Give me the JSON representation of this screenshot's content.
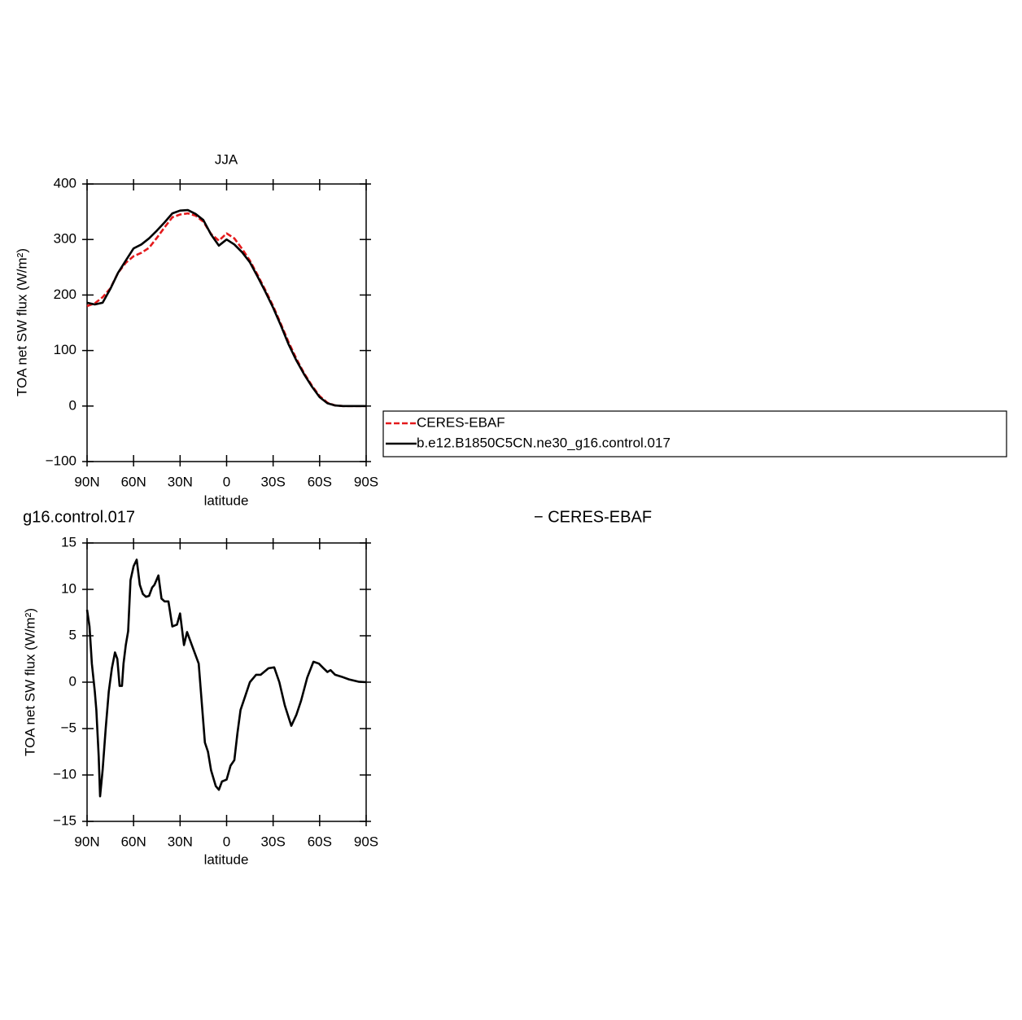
{
  "chart_data": [
    {
      "type": "line",
      "title": "JJA",
      "xlabel": "latitude",
      "ylabel": "TOA net SW flux (W/m²)",
      "x": [
        90,
        85,
        80,
        75,
        70,
        65,
        60,
        55,
        50,
        45,
        40,
        35,
        30,
        25,
        20,
        15,
        10,
        5,
        0,
        -5,
        -10,
        -15,
        -20,
        -25,
        -30,
        -35,
        -40,
        -45,
        -50,
        -55,
        -60,
        -65,
        -70,
        -75,
        -80,
        -85,
        -90
      ],
      "series": [
        {
          "name": "CERES-EBAF",
          "color": "#e41a1c",
          "dash": true,
          "values": [
            180,
            185,
            196,
            212,
            240,
            258,
            270,
            276,
            285,
            303,
            322,
            340,
            345,
            347,
            343,
            332,
            310,
            298,
            311,
            302,
            283,
            262,
            236,
            209,
            180,
            148,
            115,
            85,
            59,
            37,
            18,
            6,
            1,
            0,
            0,
            0,
            0
          ]
        },
        {
          "name": "b.e12.B1850C5CN.ne30_g16.control.017",
          "color": "#000000",
          "dash": false,
          "values": [
            186,
            183,
            186,
            211,
            240,
            262,
            284,
            291,
            302,
            316,
            331,
            347,
            352,
            353,
            346,
            335,
            309,
            289,
            300,
            291,
            277,
            259,
            233,
            206,
            177,
            145,
            111,
            82,
            57,
            35,
            16,
            5,
            1,
            0,
            0,
            0,
            0
          ]
        }
      ],
      "xlim": [
        90,
        -90
      ],
      "xticks": [
        {
          "value": 90,
          "label": "90N"
        },
        {
          "value": 60,
          "label": "60N"
        },
        {
          "value": 30,
          "label": "30N"
        },
        0,
        {
          "value": -30,
          "label": "30S"
        },
        {
          "value": -60,
          "label": "60S"
        },
        {
          "value": -90,
          "label": "90S"
        }
      ],
      "ylim": [
        -100,
        400
      ],
      "yticks": [
        {
          "value": -100,
          "label": "−100"
        },
        0,
        100,
        200,
        300,
        400
      ],
      "legend": "right"
    },
    {
      "type": "line",
      "title_left": "g16.control.017",
      "title_right": "− CERES-EBAF",
      "xlabel": "latitude",
      "ylabel": "TOA net SW flux (W/m²)",
      "x": [
        90,
        88.4,
        86.9,
        85,
        84,
        82.5,
        81.6,
        80,
        78,
        76,
        74,
        72,
        70.5,
        69,
        67.5,
        66.5,
        65,
        63.5,
        62,
        60,
        58,
        56,
        54,
        52,
        50,
        48,
        46.5,
        44,
        42,
        40,
        37.5,
        35,
        32,
        30,
        27.5,
        25.5,
        22,
        18,
        14,
        12,
        10,
        7,
        5,
        3,
        0,
        -2.5,
        -5,
        -7,
        -9,
        -12,
        -15,
        -19,
        -22,
        -27,
        -30.7,
        -34,
        -37.5,
        -41.7,
        -45,
        -48,
        -52,
        -56,
        -59.5,
        -62.5,
        -65,
        -67,
        -70,
        -74,
        -79,
        -85,
        -90
      ],
      "series": [
        {
          "name": "difference",
          "color": "#000000",
          "values": [
            7.8,
            6,
            2,
            -1,
            -3,
            -8,
            -12.3,
            -9.5,
            -5,
            -1,
            1.5,
            3.2,
            2.5,
            -0.4,
            -0.4,
            2,
            4,
            5.5,
            11,
            12.5,
            13.2,
            10.5,
            9.5,
            9.2,
            9.3,
            10.2,
            10.5,
            11.5,
            9,
            8.7,
            8.7,
            6,
            6.2,
            7.4,
            4,
            5.4,
            3.8,
            2,
            -6.5,
            -7.5,
            -9.5,
            -11.2,
            -11.6,
            -10.7,
            -10.5,
            -9,
            -8.4,
            -5.5,
            -3,
            -1.5,
            0,
            0.8,
            0.8,
            1.5,
            1.6,
            0,
            -2.5,
            -4.7,
            -3.5,
            -2,
            0.5,
            2.2,
            2,
            1.5,
            1.1,
            1.3,
            0.8,
            0.6,
            0.3,
            0.05,
            0
          ]
        }
      ],
      "xlim": [
        90,
        -90
      ],
      "xticks": [
        {
          "value": 90,
          "label": "90N"
        },
        {
          "value": 60,
          "label": "60N"
        },
        {
          "value": 30,
          "label": "30N"
        },
        0,
        {
          "value": -30,
          "label": "30S"
        },
        {
          "value": -60,
          "label": "60S"
        },
        {
          "value": -90,
          "label": "90S"
        }
      ],
      "ylim": [
        -15,
        15
      ],
      "yticks": [
        {
          "value": -15,
          "label": "−15"
        },
        {
          "value": -10,
          "label": "−10"
        },
        {
          "value": -5,
          "label": "−5"
        },
        0,
        5,
        10,
        15
      ]
    }
  ]
}
